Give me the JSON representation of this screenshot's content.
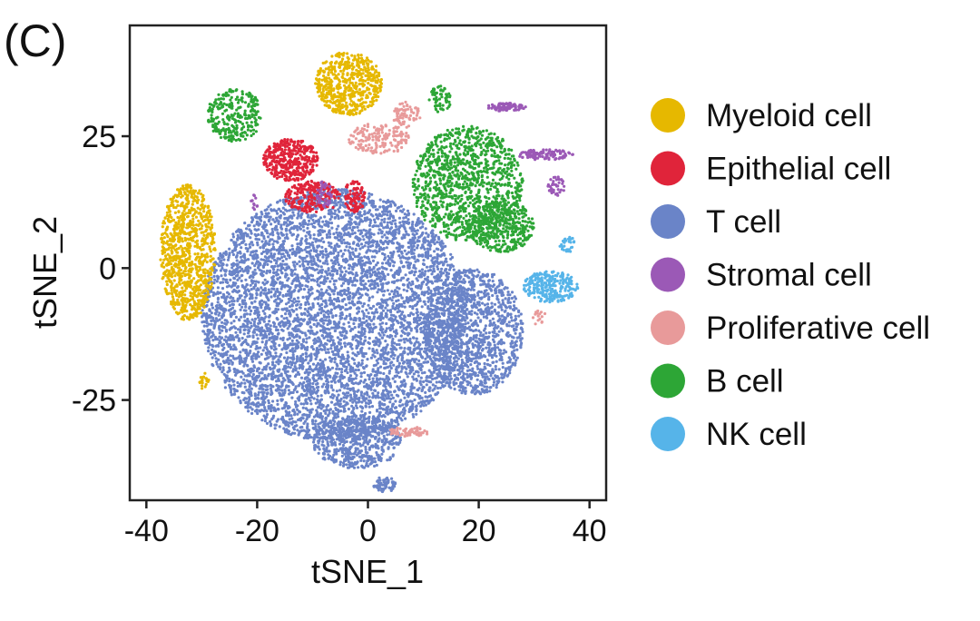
{
  "panel_label": "(C)",
  "chart_data": {
    "type": "scatter",
    "title": "",
    "xlabel": "tSNE_1",
    "ylabel": "tSNE_2",
    "xlim": [
      -43,
      43
    ],
    "ylim": [
      -44,
      46
    ],
    "xticks": [
      -40,
      -20,
      0,
      20,
      40
    ],
    "yticks": [
      -25,
      0,
      25
    ],
    "grid": false,
    "legend_position": "right",
    "series": [
      {
        "name": "Myeloid cell",
        "color": "#E6B800",
        "clusters": [
          {
            "cx": -32.5,
            "cy": 3,
            "rx": 5,
            "ry": 13,
            "n": 900
          },
          {
            "cx": -3.5,
            "cy": 35,
            "rx": 6,
            "ry": 6,
            "n": 550
          },
          {
            "cx": -29.5,
            "cy": -21.5,
            "rx": 0.9,
            "ry": 1.6,
            "n": 20
          }
        ]
      },
      {
        "name": "Epithelial cell",
        "color": "#E0243A",
        "clusters": [
          {
            "cx": -14,
            "cy": 20.5,
            "rx": 5,
            "ry": 4,
            "n": 380
          },
          {
            "cx": -10,
            "cy": 13.5,
            "rx": 5,
            "ry": 3,
            "n": 220
          },
          {
            "cx": -2.5,
            "cy": 13.5,
            "rx": 2,
            "ry": 3,
            "n": 90
          }
        ]
      },
      {
        "name": "T cell",
        "color": "#6A84C8",
        "clusters": [
          {
            "cx": -6,
            "cy": -9,
            "rx": 24,
            "ry": 24,
            "n": 6000
          },
          {
            "cx": 19,
            "cy": -12,
            "rx": 9,
            "ry": 12,
            "n": 1200
          },
          {
            "cx": -2,
            "cy": -33,
            "rx": 8,
            "ry": 5,
            "n": 500
          },
          {
            "cx": 3,
            "cy": -41,
            "rx": 2,
            "ry": 1.5,
            "n": 60
          }
        ]
      },
      {
        "name": "Stromal cell",
        "color": "#9B59B6",
        "clusters": [
          {
            "cx": 25,
            "cy": 30.5,
            "rx": 3.5,
            "ry": 0.8,
            "n": 80
          },
          {
            "cx": 32,
            "cy": 21.5,
            "rx": 5,
            "ry": 1,
            "n": 100
          },
          {
            "cx": 34,
            "cy": 15.5,
            "rx": 1.5,
            "ry": 2,
            "n": 40
          },
          {
            "cx": -8,
            "cy": 14,
            "rx": 1.5,
            "ry": 2.5,
            "n": 40
          },
          {
            "cx": -20.5,
            "cy": 12.5,
            "rx": 0.7,
            "ry": 1.5,
            "n": 12
          }
        ]
      },
      {
        "name": "Proliferative cell",
        "color": "#E89A9A",
        "clusters": [
          {
            "cx": 2,
            "cy": 24.5,
            "rx": 5.5,
            "ry": 3,
            "n": 170
          },
          {
            "cx": 7,
            "cy": 29,
            "rx": 2.5,
            "ry": 2.5,
            "n": 70
          },
          {
            "cx": 7.5,
            "cy": -31,
            "rx": 4,
            "ry": 0.9,
            "n": 60
          },
          {
            "cx": 31,
            "cy": -9.5,
            "rx": 1.2,
            "ry": 1.5,
            "n": 15
          }
        ]
      },
      {
        "name": "B cell",
        "color": "#2DA636",
        "clusters": [
          {
            "cx": 18,
            "cy": 16,
            "rx": 10,
            "ry": 11,
            "n": 1100
          },
          {
            "cx": 24,
            "cy": 8,
            "rx": 6,
            "ry": 5,
            "n": 400
          },
          {
            "cx": 13,
            "cy": 32,
            "rx": 2,
            "ry": 2.5,
            "n": 60
          },
          {
            "cx": -24,
            "cy": 29,
            "rx": 5,
            "ry": 5,
            "n": 280
          }
        ]
      },
      {
        "name": "NK cell",
        "color": "#56B4E9",
        "clusters": [
          {
            "cx": 33,
            "cy": -3.5,
            "rx": 5,
            "ry": 3,
            "n": 240
          },
          {
            "cx": 36,
            "cy": 4.5,
            "rx": 1.5,
            "ry": 1.5,
            "n": 30
          }
        ]
      }
    ]
  }
}
